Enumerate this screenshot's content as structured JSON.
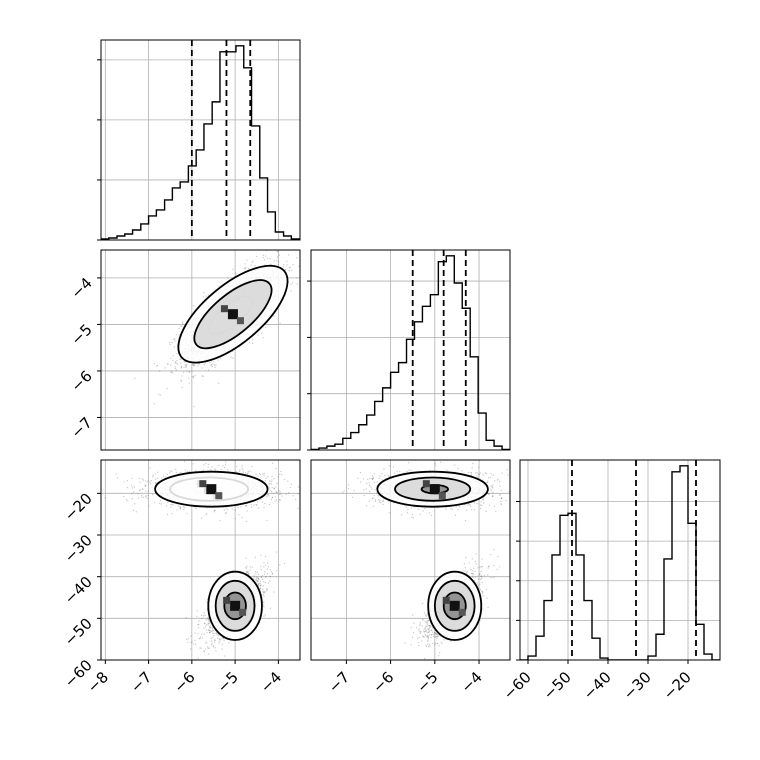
{
  "chart_data": {
    "type": "corner",
    "grid": true,
    "panels": [
      {
        "id": "hist-0",
        "type": "histogram",
        "xlim": [
          -8.1,
          -3.5
        ],
        "bins": [
          -8.1,
          -7.92,
          -7.73,
          -7.55,
          -7.37,
          -7.18,
          -7.0,
          -6.82,
          -6.63,
          -6.45,
          -6.27,
          -6.08,
          -5.9,
          -5.72,
          -5.53,
          -5.35,
          -5.17,
          -4.98,
          -4.8,
          -4.62,
          -4.43,
          -4.25,
          -4.07,
          -3.88,
          -3.7,
          -3.5
        ],
        "counts": [
          0.005,
          0.01,
          0.02,
          0.03,
          0.05,
          0.08,
          0.12,
          0.15,
          0.2,
          0.26,
          0.29,
          0.37,
          0.45,
          0.58,
          0.69,
          0.94,
          0.94,
          0.97,
          0.86,
          0.57,
          0.31,
          0.14,
          0.04,
          0.02,
          0.005
        ],
        "quantiles": [
          -6.0,
          -5.2,
          -4.65
        ],
        "ytick_values": [
          0.0,
          0.3,
          0.6,
          0.9
        ]
      },
      {
        "id": "hist-1",
        "type": "histogram",
        "xlim": [
          -7.8,
          -3.3
        ],
        "bins": [
          -7.8,
          -7.62,
          -7.44,
          -7.26,
          -7.08,
          -6.9,
          -6.72,
          -6.54,
          -6.36,
          -6.18,
          -6.0,
          -5.82,
          -5.64,
          -5.46,
          -5.28,
          -5.1,
          -4.92,
          -4.74,
          -4.56,
          -4.38,
          -4.2,
          -4.02,
          -3.84,
          -3.66,
          -3.48,
          -3.3
        ],
        "counts": [
          0.003,
          0.01,
          0.02,
          0.03,
          0.06,
          0.09,
          0.13,
          0.18,
          0.25,
          0.32,
          0.4,
          0.45,
          0.57,
          0.66,
          0.74,
          0.8,
          0.97,
          1.0,
          0.86,
          0.73,
          0.48,
          0.19,
          0.05,
          0.02,
          0.003
        ],
        "quantiles": [
          -5.5,
          -4.8,
          -4.3
        ],
        "ytick_values": [
          0.0,
          0.29,
          0.58,
          0.87
        ]
      },
      {
        "id": "hist-2",
        "type": "histogram",
        "xlim": [
          -62,
          -12
        ],
        "bins": [
          -62,
          -60,
          -58,
          -56,
          -54,
          -52,
          -50,
          -48,
          -46,
          -44,
          -42,
          -40,
          -38,
          -36,
          -34,
          -32,
          -30,
          -28,
          -26,
          -24,
          -22,
          -20,
          -18,
          -16,
          -14,
          -12
        ],
        "counts": [
          0.0,
          0.02,
          0.12,
          0.3,
          0.53,
          0.73,
          0.74,
          0.53,
          0.3,
          0.11,
          0.01,
          0.0,
          0.0,
          0.0,
          0.0,
          0.0,
          0.02,
          0.13,
          0.51,
          0.95,
          0.98,
          0.69,
          0.18,
          0.03,
          0.0
        ],
        "quantiles": [
          -49,
          -33,
          -18
        ],
        "ytick_values": [
          0.0,
          0.2,
          0.4,
          0.6,
          0.8
        ]
      },
      {
        "id": "scatter-1-0",
        "type": "scatter",
        "xlim": [
          -8.1,
          -3.5
        ],
        "ylim": [
          -7.7,
          -3.4
        ],
        "clusters": [
          {
            "cx": -5.1,
            "cy": -4.8,
            "sx": 0.55,
            "sy": 0.5,
            "rho": 0.75,
            "n": 2600
          }
        ],
        "contours": [
          {
            "cx": -5.1,
            "cy": -4.8,
            "rx": 0.62,
            "ry": 0.22,
            "angle": 40
          },
          {
            "cx": -5.05,
            "cy": -4.78,
            "rx": 1.1,
            "ry": 0.42,
            "angle": 40
          },
          {
            "cx": -5.05,
            "cy": -4.78,
            "rx": 1.55,
            "ry": 0.62,
            "angle": 40
          }
        ]
      },
      {
        "id": "scatter-2-0",
        "type": "scatter",
        "xlim": [
          -8.1,
          -3.5
        ],
        "ylim": [
          -60,
          -12
        ],
        "clusters": [
          {
            "cx": -5.5,
            "cy": -19,
            "sx": 0.75,
            "sy": 2.2,
            "rho": 0.0,
            "n": 1300
          },
          {
            "cx": -5.0,
            "cy": -47,
            "sx": 0.35,
            "sy": 4.0,
            "rho": 0.7,
            "n": 1300
          }
        ],
        "contours": [
          {
            "cx": -5.65,
            "cy": -19,
            "rx": 0.3,
            "ry": 1.0,
            "angle": 0
          },
          {
            "cx": -5.6,
            "cy": -19,
            "rx": 0.9,
            "ry": 2.8,
            "angle": 0
          },
          {
            "cx": -5.55,
            "cy": -19,
            "rx": 1.3,
            "ry": 4.2,
            "angle": 0
          },
          {
            "cx": -5.0,
            "cy": -47,
            "rx": 0.25,
            "ry": 3.2,
            "angle": 0
          },
          {
            "cx": -5.0,
            "cy": -47,
            "rx": 0.45,
            "ry": 6.0,
            "angle": 0
          },
          {
            "cx": -5.0,
            "cy": -47,
            "rx": 0.62,
            "ry": 8.2,
            "angle": 0
          }
        ]
      },
      {
        "id": "scatter-2-1",
        "type": "scatter",
        "xlim": [
          -7.8,
          -3.3
        ],
        "ylim": [
          -60,
          -12
        ],
        "clusters": [
          {
            "cx": -5.0,
            "cy": -19,
            "sx": 0.7,
            "sy": 2.2,
            "rho": 0.0,
            "n": 1300
          },
          {
            "cx": -4.6,
            "cy": -47,
            "sx": 0.33,
            "sy": 4.0,
            "rho": 0.7,
            "n": 1300
          }
        ],
        "contours": [
          {
            "cx": -5.0,
            "cy": -19,
            "rx": 0.3,
            "ry": 1.0,
            "angle": 0
          },
          {
            "cx": -5.05,
            "cy": -19,
            "rx": 0.85,
            "ry": 2.8,
            "angle": 0
          },
          {
            "cx": -5.05,
            "cy": -19,
            "rx": 1.25,
            "ry": 4.2,
            "angle": 0
          },
          {
            "cx": -4.55,
            "cy": -47,
            "rx": 0.25,
            "ry": 3.2,
            "angle": 0
          },
          {
            "cx": -4.55,
            "cy": -47,
            "rx": 0.45,
            "ry": 6.0,
            "angle": 0
          },
          {
            "cx": -4.55,
            "cy": -47,
            "rx": 0.6,
            "ry": 8.2,
            "angle": 0
          }
        ]
      }
    ],
    "axes": {
      "x_col0_ticks": [
        "−8",
        "−7",
        "−6",
        "−5",
        "−4"
      ],
      "x_col0_values": [
        -8,
        -7,
        -6,
        -5,
        -4
      ],
      "x_col1_ticks": [
        "−7",
        "−6",
        "−5",
        "−4"
      ],
      "x_col1_values": [
        -7,
        -6,
        -5,
        -4
      ],
      "x_col2_ticks": [
        "−60",
        "−50",
        "−40",
        "−30",
        "−20"
      ],
      "x_col2_values": [
        -60,
        -50,
        -40,
        -30,
        -20
      ],
      "y_row1_ticks": [
        "−4",
        "−5",
        "−6",
        "−7"
      ],
      "y_row1_values": [
        -4,
        -5,
        -6,
        -7
      ],
      "y_row2_ticks": [
        "−20",
        "−30",
        "−40",
        "−50",
        "−60"
      ],
      "y_row2_values": [
        -20,
        -30,
        -40,
        -50,
        -60
      ]
    }
  }
}
